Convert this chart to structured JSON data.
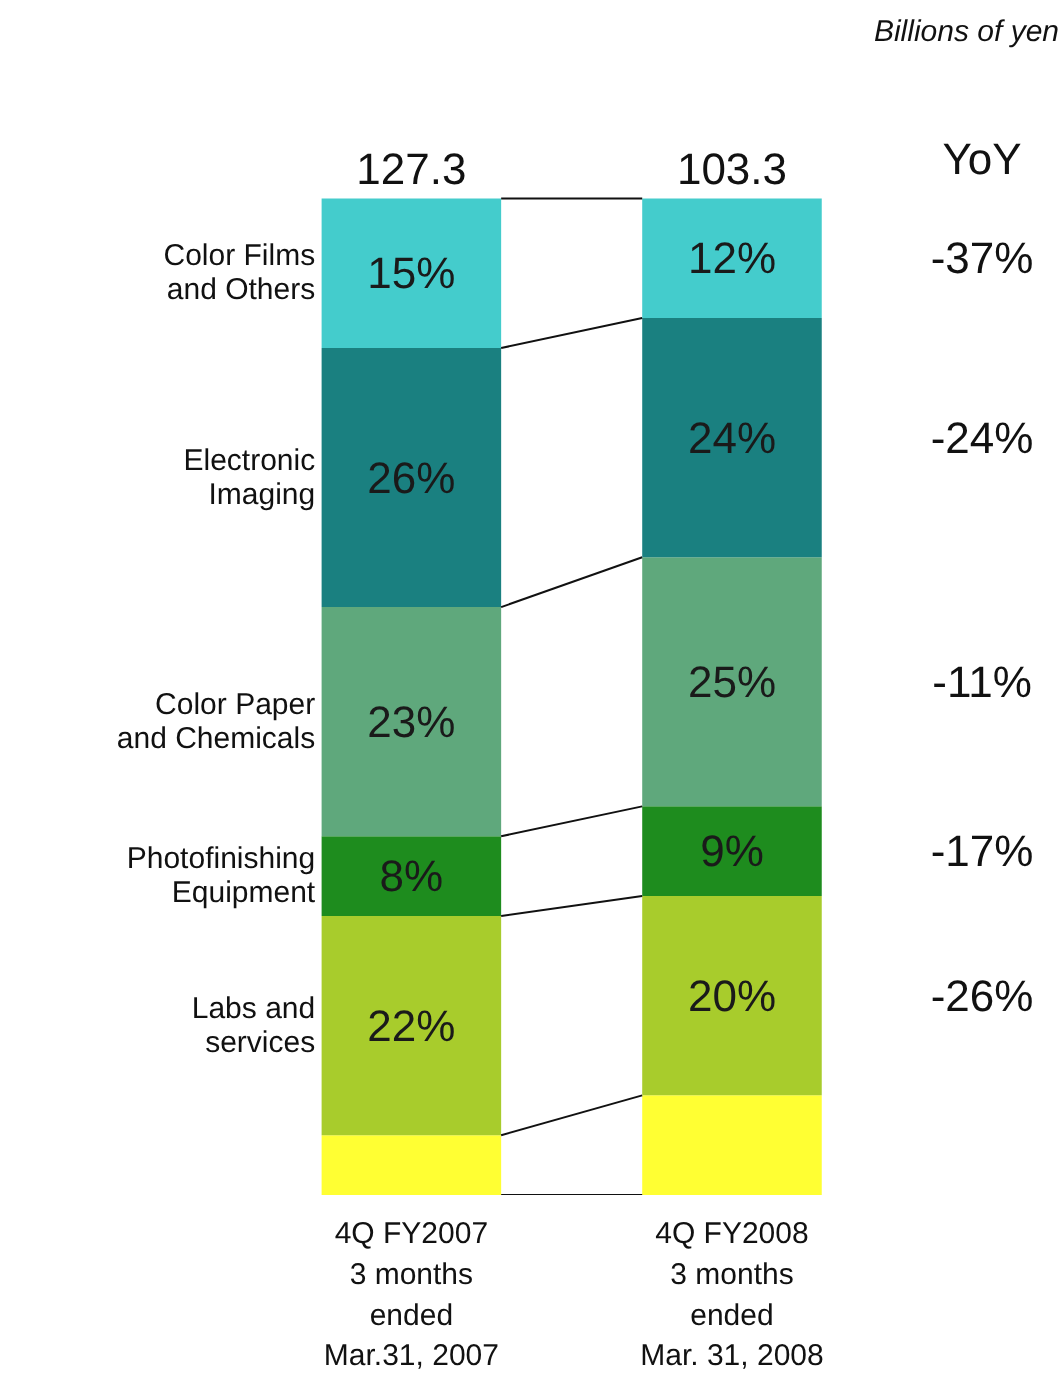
{
  "chart_data": {
    "type": "bar",
    "stacked": true,
    "title": "Billions of yen",
    "categories": [
      "4Q FY2007\n3 months\nended\nMar.31, 2007",
      "4Q FY2008\n3 months\nended\nMar. 31, 2008"
    ],
    "series": [
      {
        "color": "#ffff33",
        "values": [
          6,
          10
        ]
      },
      {
        "name": "Labs and\nservices",
        "color": "#a8cc2c",
        "values": [
          22,
          20
        ],
        "value_labels": [
          "22%",
          "20%"
        ]
      },
      {
        "name": "Photofinishing\nEquipment",
        "color": "#1e8c1e",
        "values": [
          8,
          9
        ],
        "value_labels": [
          "8%",
          "9%"
        ]
      },
      {
        "name": "Color Paper\nand Chemicals",
        "color": "#5fa87c",
        "values": [
          23,
          25
        ],
        "value_labels": [
          "23%",
          "25%"
        ]
      },
      {
        "name": "Electronic\nImaging",
        "color": "#1a8080",
        "values": [
          26,
          24
        ],
        "value_labels": [
          "26%",
          "24%"
        ]
      },
      {
        "name": "Color Films\nand Others",
        "color": "#44cccc",
        "values": [
          15,
          12
        ],
        "value_labels": [
          "15%",
          "12%"
        ]
      }
    ],
    "annotations": [
      {
        "text": "127.3",
        "x": "4Q FY2007\n3 months\nended\nMar.31, 2007",
        "y": 100
      },
      {
        "text": "103.3",
        "x": "4Q FY2008\n3 months\nended\nMar. 31, 2008",
        "y": 100
      },
      "YoY",
      "-37%",
      "-24%",
      "-11%",
      "-17%",
      "-26%"
    ],
    "grid": false
  }
}
